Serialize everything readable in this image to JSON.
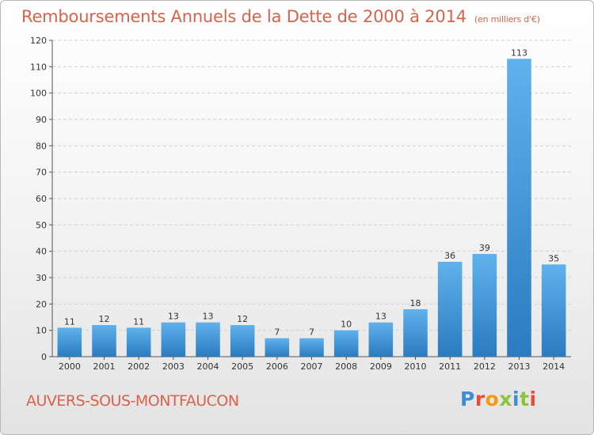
{
  "header": {
    "title": "Remboursements Annuels de la Dette de 2000 à 2014",
    "unit": "(en milliers d'€)"
  },
  "footer": {
    "commune": "AUVERS-SOUS-MONTFAUCON",
    "logo": "Proxiti"
  },
  "colors": {
    "title": "#d9624a",
    "bar_top": "#5fb2ec",
    "bar_bottom": "#2a7bc0",
    "logo_letters": [
      "#3a8fd4",
      "#e74c3c",
      "#f39c12",
      "#8ac43f",
      "#3a8fd4",
      "#8ac43f",
      "#e74c3c"
    ]
  },
  "chart_data": {
    "type": "bar",
    "categories": [
      "2000",
      "2001",
      "2002",
      "2003",
      "2004",
      "2005",
      "2006",
      "2007",
      "2008",
      "2009",
      "2010",
      "2011",
      "2012",
      "2013",
      "2014"
    ],
    "values": [
      11,
      12,
      11,
      13,
      13,
      12,
      7,
      7,
      10,
      13,
      18,
      36,
      39,
      113,
      35
    ],
    "title": "Remboursements Annuels de la Dette de 2000 à 2014",
    "xlabel": "",
    "ylabel": "",
    "ylim": [
      0,
      120
    ],
    "yticks": [
      0,
      10,
      20,
      30,
      40,
      50,
      60,
      70,
      80,
      90,
      100,
      110,
      120
    ],
    "grid": true,
    "legend": "none"
  }
}
